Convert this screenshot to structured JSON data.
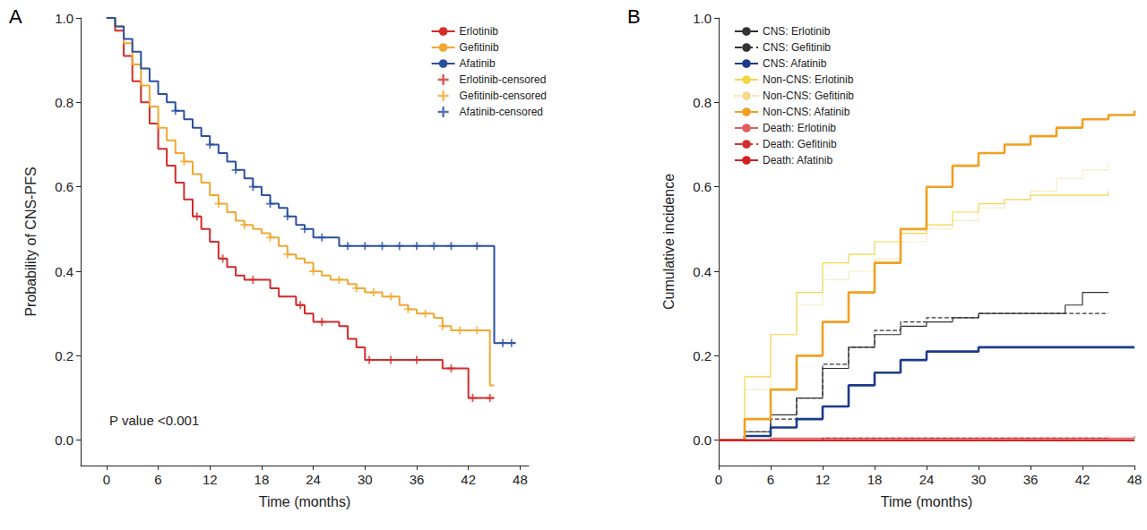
{
  "chart_data": [
    {
      "type": "step",
      "title": "A",
      "xlabel": "Time (months)",
      "ylabel": "Probability of CNS-PFS",
      "annotations": [
        "P value <0.001"
      ],
      "xlim": [
        -3,
        49
      ],
      "xticks": [
        0,
        6,
        12,
        18,
        24,
        30,
        36,
        42,
        48
      ],
      "ylim": [
        -0.06,
        1
      ],
      "yticks": [
        {
          "value": 0,
          "label": "0.0"
        },
        0.2,
        0.4,
        0.6,
        0.8,
        {
          "value": 1,
          "label": "1.0"
        }
      ],
      "legend": "top right",
      "grid": false,
      "series": [
        {
          "name": "Erlotinib",
          "color": "#d42a2a",
          "line_style": "solid",
          "x": [
            0,
            1,
            2,
            3,
            4,
            5,
            6,
            7,
            8,
            9,
            10,
            11,
            12,
            13,
            14,
            15,
            16,
            18,
            19,
            20,
            22,
            23,
            24,
            27,
            28,
            29,
            30,
            38,
            39,
            41,
            42,
            45
          ],
          "values": [
            1,
            0.97,
            0.91,
            0.85,
            0.8,
            0.75,
            0.69,
            0.65,
            0.61,
            0.57,
            0.53,
            0.5,
            0.47,
            0.43,
            0.41,
            0.39,
            0.38,
            0.38,
            0.36,
            0.34,
            0.32,
            0.3,
            0.28,
            0.27,
            0.24,
            0.22,
            0.19,
            0.19,
            0.17,
            0.17,
            0.1,
            0.1
          ]
        },
        {
          "name": "Gefitinib",
          "color": "#f0a830",
          "line_style": "solid",
          "x": [
            0,
            1,
            2,
            3,
            4,
            5,
            6,
            7,
            8,
            9,
            10,
            11,
            12,
            13,
            14,
            15,
            16,
            17,
            18,
            19,
            20,
            21,
            22,
            23,
            24,
            25,
            26,
            28,
            29,
            30,
            32,
            34,
            35,
            36,
            38,
            39,
            40,
            44.5,
            45
          ],
          "values": [
            1,
            0.98,
            0.94,
            0.89,
            0.84,
            0.79,
            0.74,
            0.71,
            0.68,
            0.66,
            0.63,
            0.61,
            0.58,
            0.56,
            0.54,
            0.52,
            0.51,
            0.5,
            0.49,
            0.48,
            0.46,
            0.44,
            0.43,
            0.42,
            0.4,
            0.39,
            0.38,
            0.37,
            0.36,
            0.35,
            0.34,
            0.32,
            0.31,
            0.3,
            0.29,
            0.27,
            0.26,
            0.13,
            0.13
          ]
        },
        {
          "name": "Afatinib",
          "color": "#2a4fa0",
          "line_style": "solid",
          "x": [
            0,
            1,
            2,
            3,
            4,
            5,
            6,
            7,
            8,
            9,
            10,
            11,
            12,
            13,
            14,
            15,
            16,
            17,
            18,
            19,
            20,
            21,
            22,
            23,
            24,
            27,
            45,
            47.5
          ],
          "values": [
            1,
            0.98,
            0.95,
            0.92,
            0.88,
            0.85,
            0.82,
            0.8,
            0.78,
            0.76,
            0.74,
            0.72,
            0.7,
            0.68,
            0.66,
            0.64,
            0.62,
            0.6,
            0.58,
            0.56,
            0.55,
            0.53,
            0.51,
            0.5,
            0.48,
            0.46,
            0.23,
            0.23
          ]
        },
        {
          "name": "Erlotinib-censored",
          "color": "#d42a2a",
          "type": "scatter",
          "marker": "plus",
          "x": [
            10.5,
            13.5,
            17,
            22.5,
            25,
            30.5,
            33,
            36,
            40,
            42.5,
            44.5
          ],
          "values": [
            0.53,
            0.43,
            0.38,
            0.32,
            0.28,
            0.19,
            0.19,
            0.19,
            0.17,
            0.1,
            0.1
          ]
        },
        {
          "name": "Gefitinib-censored",
          "color": "#f0a830",
          "type": "scatter",
          "marker": "plus",
          "x": [
            9,
            13,
            16,
            19,
            21,
            24,
            27,
            29,
            31,
            33,
            35,
            37,
            39,
            41,
            43
          ],
          "values": [
            0.66,
            0.56,
            0.51,
            0.48,
            0.44,
            0.4,
            0.38,
            0.36,
            0.35,
            0.34,
            0.31,
            0.3,
            0.27,
            0.26,
            0.26
          ]
        },
        {
          "name": "Afatinib-censored",
          "color": "#2a4fa0",
          "type": "scatter",
          "marker": "plus",
          "x": [
            8,
            12,
            15,
            17,
            19,
            21,
            23,
            25,
            28,
            30,
            32,
            34,
            36,
            38,
            40,
            43,
            46,
            47
          ],
          "values": [
            0.78,
            0.7,
            0.64,
            0.6,
            0.56,
            0.53,
            0.5,
            0.48,
            0.46,
            0.46,
            0.46,
            0.46,
            0.46,
            0.46,
            0.46,
            0.46,
            0.23,
            0.23
          ]
        }
      ]
    },
    {
      "type": "step",
      "title": "B",
      "xlabel": "Time (months)",
      "ylabel": "Cumulative incidence",
      "xlim": [
        0,
        48
      ],
      "xticks": [
        0,
        6,
        12,
        18,
        24,
        30,
        36,
        42,
        48
      ],
      "ylim": [
        -0.06,
        1
      ],
      "yticks": [
        {
          "value": 0,
          "label": "0.0"
        },
        0.2,
        0.4,
        0.6,
        0.8,
        {
          "value": 1,
          "label": "1.0"
        }
      ],
      "legend": "top left",
      "grid": false,
      "series": [
        {
          "name": "CNS: Erlotinib",
          "color": "#333333",
          "line_style": "solid",
          "x": [
            0,
            3,
            6,
            9,
            12,
            15,
            18,
            21,
            24,
            27,
            30,
            36,
            40,
            42,
            45
          ],
          "values": [
            0,
            0.02,
            0.06,
            0.1,
            0.17,
            0.22,
            0.25,
            0.27,
            0.28,
            0.29,
            0.3,
            0.3,
            0.32,
            0.35,
            0.35
          ]
        },
        {
          "name": "CNS: Gefitinib",
          "color": "#333333",
          "line_style": "dashed",
          "x": [
            0,
            3,
            6,
            9,
            12,
            15,
            18,
            21,
            24,
            27,
            30,
            40,
            42,
            45
          ],
          "values": [
            0,
            0.02,
            0.05,
            0.1,
            0.18,
            0.22,
            0.26,
            0.28,
            0.29,
            0.29,
            0.3,
            0.3,
            0.3,
            0.3
          ]
        },
        {
          "name": "CNS: Afatinib",
          "color": "#1a3a8a",
          "line_style": "solid",
          "x": [
            0,
            3,
            6,
            9,
            12,
            15,
            18,
            21,
            24,
            27,
            30,
            36,
            45,
            48
          ],
          "values": [
            0,
            0.01,
            0.03,
            0.05,
            0.08,
            0.13,
            0.16,
            0.19,
            0.21,
            0.21,
            0.22,
            0.22,
            0.22,
            0.22
          ]
        },
        {
          "name": "Non-CNS: Erlotinib",
          "color": "#f5d547",
          "line_style": "solid",
          "x": [
            0,
            3,
            6,
            9,
            12,
            15,
            18,
            21,
            24,
            27,
            30,
            33,
            36,
            45
          ],
          "values": [
            0,
            0.15,
            0.25,
            0.35,
            0.42,
            0.44,
            0.47,
            0.49,
            0.51,
            0.54,
            0.56,
            0.57,
            0.58,
            0.59
          ]
        },
        {
          "name": "Non-CNS: Gefitinib",
          "color": "#f3d98a",
          "line_style": "dotted",
          "x": [
            0,
            3,
            6,
            9,
            12,
            15,
            18,
            21,
            24,
            27,
            30,
            33,
            36,
            39,
            42,
            45
          ],
          "values": [
            0,
            0.12,
            0.25,
            0.32,
            0.38,
            0.4,
            0.43,
            0.47,
            0.5,
            0.52,
            0.55,
            0.57,
            0.59,
            0.62,
            0.64,
            0.66
          ]
        },
        {
          "name": "Non-CNS: Afatinib",
          "color": "#f0a020",
          "line_style": "solid",
          "x": [
            0,
            3,
            6,
            9,
            12,
            15,
            18,
            21,
            24,
            27,
            30,
            33,
            36,
            39,
            42,
            45,
            48
          ],
          "values": [
            0,
            0.05,
            0.12,
            0.2,
            0.28,
            0.35,
            0.42,
            0.5,
            0.6,
            0.65,
            0.68,
            0.7,
            0.72,
            0.74,
            0.76,
            0.77,
            0.78
          ]
        },
        {
          "name": "Death: Erlotinib",
          "color": "#e06060",
          "line_style": "solid",
          "x": [
            0,
            6,
            48
          ],
          "values": [
            0,
            0.005,
            0.01
          ]
        },
        {
          "name": "Death: Gefitinib",
          "color": "#d03030",
          "line_style": "dashed",
          "x": [
            0,
            12,
            45
          ],
          "values": [
            0,
            0.005,
            0.01
          ]
        },
        {
          "name": "Death: Afatinib",
          "color": "#d42020",
          "line_style": "solid",
          "x": [
            0,
            48
          ],
          "values": [
            0,
            0
          ]
        }
      ]
    }
  ]
}
